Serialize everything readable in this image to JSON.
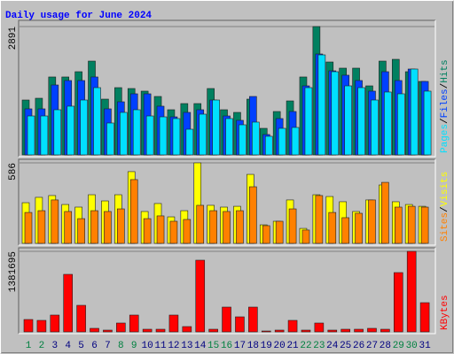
{
  "title": "Daily usage for June 2024",
  "legend_separator": "/",
  "chart_data": [
    {
      "type": "bar",
      "ylim": [
        0,
        2891
      ],
      "yticks": [
        2891
      ],
      "series": [
        {
          "name": "Hits",
          "color": "#008060",
          "values": [
            1236,
            1276,
            1755,
            1755,
            1874,
            2113,
            1256,
            1515,
            1495,
            1436,
            1316,
            1017,
            1156,
            1156,
            1495,
            1017,
            957,
            1256,
            598,
            977,
            1216,
            1755,
            2891,
            2093,
            1954,
            1954,
            1555,
            2113,
            2153,
            1874,
            1655
          ]
        },
        {
          "name": "Files",
          "color": "#0040ff",
          "values": [
            1037,
            1037,
            1575,
            1675,
            1675,
            1755,
            1037,
            1196,
            1376,
            1376,
            1097,
            857,
            957,
            1017,
            1236,
            877,
            778,
            1316,
            459,
            818,
            977,
            1555,
            2273,
            1894,
            1795,
            1675,
            1436,
            1874,
            1675,
            1934,
            1655
          ]
        },
        {
          "name": "Pages",
          "color": "#00e0ff",
          "values": [
            877,
            877,
            1017,
            1097,
            1236,
            1515,
            718,
            957,
            1017,
            877,
            857,
            818,
            578,
            917,
            1236,
            818,
            678,
            738,
            419,
            598,
            618,
            1515,
            2253,
            1874,
            1555,
            1515,
            1236,
            1416,
            1376,
            1934,
            1436
          ]
        }
      ]
    },
    {
      "type": "bar",
      "ylim": [
        0,
        586
      ],
      "yticks": [
        586
      ],
      "series": [
        {
          "name": "Visits",
          "color": "#ffff00",
          "values": [
            296,
            335,
            348,
            283,
            264,
            354,
            309,
            354,
            522,
            232,
            290,
            193,
            238,
            586,
            277,
            264,
            270,
            502,
            135,
            161,
            316,
            109,
            354,
            341,
            303,
            232,
            316,
            425,
            303,
            283,
            270
          ]
        },
        {
          "name": "Sites",
          "color": "#ff8000",
          "values": [
            225,
            238,
            316,
            232,
            180,
            238,
            232,
            251,
            464,
            180,
            200,
            161,
            174,
            277,
            238,
            232,
            238,
            412,
            129,
            161,
            251,
            97,
            348,
            225,
            187,
            219,
            316,
            444,
            264,
            270,
            264
          ]
        }
      ]
    },
    {
      "type": "bar",
      "ylim": [
        0,
        1381695
      ],
      "yticks": [
        1381695
      ],
      "categories": [
        "1",
        "2",
        "3",
        "4",
        "5",
        "6",
        "7",
        "8",
        "9",
        "10",
        "11",
        "12",
        "13",
        "14",
        "15",
        "16",
        "17",
        "18",
        "19",
        "20",
        "21",
        "22",
        "23",
        "24",
        "25",
        "26",
        "27",
        "28",
        "29",
        "30",
        "31"
      ],
      "category_colors": [
        "#008040",
        "#008040",
        "#000080",
        "#000080",
        "#000080",
        "#000080",
        "#000080",
        "#008040",
        "#008040",
        "#000080",
        "#000080",
        "#000080",
        "#000080",
        "#000080",
        "#008040",
        "#008040",
        "#000080",
        "#000080",
        "#000080",
        "#000080",
        "#000080",
        "#008040",
        "#008040",
        "#000080",
        "#000080",
        "#000080",
        "#000080",
        "#000080",
        "#008040",
        "#008040",
        "#000080"
      ],
      "series": [
        {
          "name": "KBytes",
          "color": "#ff0000",
          "values": [
            212562,
            197379,
            288477,
            986895,
            455490,
            60732,
            30366,
            151830,
            288477,
            45549,
            45549,
            288477,
            91098,
            1229823,
            45549,
            425124,
            258111,
            425124,
            15183,
            30366,
            197379,
            30366,
            151830,
            30366,
            45549,
            45549,
            60732,
            45549,
            1017261,
            1381695,
            501039
          ]
        }
      ]
    }
  ]
}
